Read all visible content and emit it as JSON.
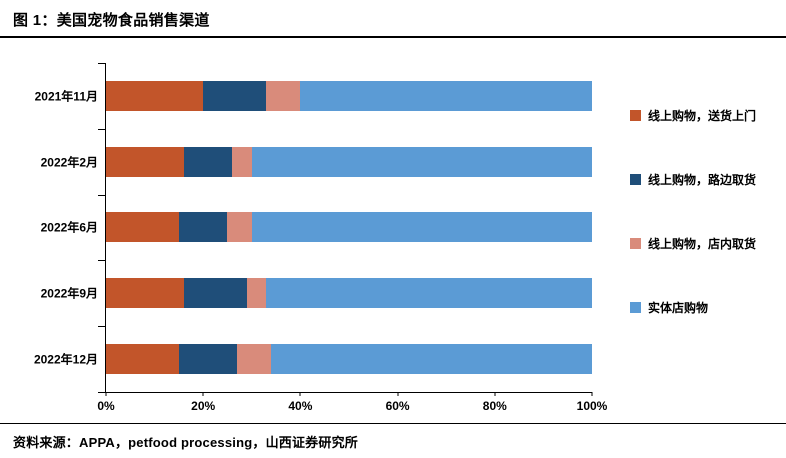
{
  "header": {
    "title": "图 1：美国宠物食品销售渠道"
  },
  "footer": {
    "source": "资料来源：APPA，petfood processing，山西证券研究所"
  },
  "chart_data": {
    "type": "bar",
    "orientation": "horizontal",
    "stacked": true,
    "title": "美国宠物食品销售渠道",
    "categories": [
      "2021年11月",
      "2022年2月",
      "2022年6月",
      "2022年9月",
      "2022年12月"
    ],
    "series": [
      {
        "name": "线上购物，送货上门",
        "color": "#C2552A",
        "values": [
          20,
          16,
          15,
          16,
          15
        ]
      },
      {
        "name": "线上购物，路边取货",
        "color": "#1F4E79",
        "values": [
          13,
          10,
          10,
          13,
          12
        ]
      },
      {
        "name": "线上购物，店内取货",
        "color": "#D98B7B",
        "values": [
          7,
          4,
          5,
          4,
          7
        ]
      },
      {
        "name": "实体店购物",
        "color": "#5B9BD5",
        "values": [
          60,
          70,
          70,
          67,
          66
        ]
      }
    ],
    "x_ticks": [
      "0%",
      "20%",
      "40%",
      "60%",
      "80%",
      "100%"
    ],
    "xlim": [
      0,
      100
    ],
    "xlabel": "",
    "ylabel": "",
    "grid": false,
    "legend_position": "right"
  }
}
